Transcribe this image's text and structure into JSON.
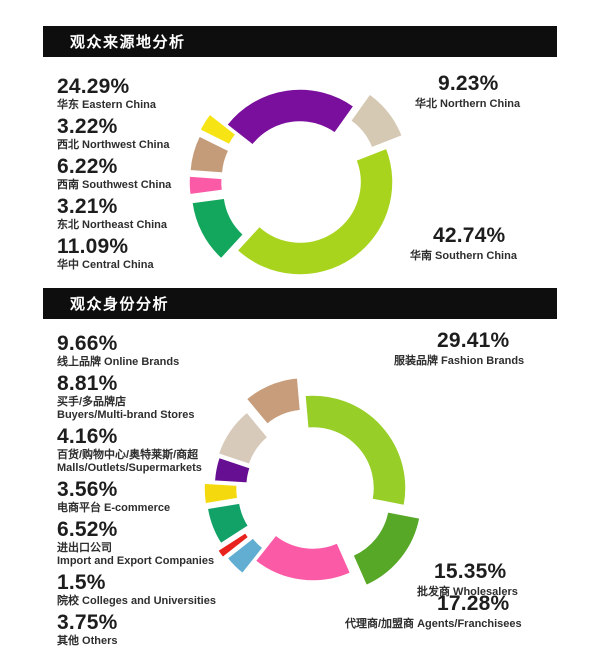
{
  "sections": [
    {
      "id": "origin",
      "title": "观众来源地分析"
    },
    {
      "id": "identity",
      "title": "观众身份分析"
    }
  ],
  "chart_data": [
    {
      "type": "pie",
      "subtype": "exploded-donut",
      "title": "观众来源地分析",
      "unit": "%",
      "start_angle_deg": -52,
      "legend_position": "none",
      "segments": [
        {
          "name_cn": "华东",
          "name_en": "Eastern China",
          "value": 24.29,
          "pct_label": "24.29%",
          "color": "#7a0f9d",
          "explode": 0,
          "label_lines": [
            "华东 Eastern China"
          ]
        },
        {
          "name_cn": "华北",
          "name_en": "Northern China",
          "value": 9.23,
          "pct_label": "9.23%",
          "color": "#d5c9b3",
          "explode": 20,
          "label_lines": [
            "华北 Northern China"
          ]
        },
        {
          "name_cn": "华南",
          "name_en": "Southern China",
          "value": 42.74,
          "pct_label": "42.74%",
          "color": "#a9d41d",
          "explode": 0,
          "label_lines": [
            "华南 Southern China"
          ]
        },
        {
          "name_cn": "华中",
          "name_en": "Central China",
          "value": 11.09,
          "pct_label": "11.09%",
          "color": "#13a65d",
          "explode": 18,
          "label_lines": [
            "华中 Central China"
          ]
        },
        {
          "name_cn": "东北",
          "name_en": "Northeast China",
          "value": 3.21,
          "pct_label": "3.21%",
          "color": "#fb5aa6",
          "explode": 18,
          "label_lines": [
            "东北 Northeast China"
          ]
        },
        {
          "name_cn": "西南",
          "name_en": "Southwest China",
          "value": 6.22,
          "pct_label": "6.22%",
          "color": "#c59c7a",
          "explode": 18,
          "label_lines": [
            "西南 Southwest China"
          ]
        },
        {
          "name_cn": "西北",
          "name_en": "Northwest China",
          "value": 3.22,
          "pct_label": "3.22%",
          "color": "#f6e414",
          "explode": 20,
          "label_lines": [
            "西北 Northwest China"
          ]
        }
      ]
    },
    {
      "type": "pie",
      "subtype": "exploded-donut",
      "title": "观众身份分析",
      "unit": "%",
      "start_angle_deg": -5,
      "legend_position": "none",
      "segments": [
        {
          "name_cn": "服装品牌",
          "name_en": "Fashion Brands",
          "value": 29.41,
          "pct_label": "29.41%",
          "color": "#97ce27",
          "explode": 0,
          "label_lines": [
            "服装品牌 Fashion Brands"
          ]
        },
        {
          "name_cn": "批发商",
          "name_en": "Wholesalers",
          "value": 15.35,
          "pct_label": "15.35%",
          "color": "#57a827",
          "explode": 20,
          "label_lines": [
            "批发商 Wholesalers"
          ]
        },
        {
          "name_cn": "代理商/加盟商",
          "name_en": "Agents/Franchisees",
          "value": 17.28,
          "pct_label": "17.28%",
          "color": "#fb5aa6",
          "explode": 0,
          "label_lines": [
            "代理商/加盟商 Agents/Franchisees"
          ]
        },
        {
          "name_cn": "其他",
          "name_en": "Others",
          "value": 3.75,
          "pct_label": "3.75%",
          "color": "#62aed2",
          "explode": 18,
          "label_lines": [
            "其他 Others"
          ]
        },
        {
          "name_cn": "院校",
          "name_en": "Colleges and Universities",
          "value": 1.5,
          "pct_label": "1.5%",
          "color": "#e8221c",
          "explode": 21,
          "label_lines": [
            "院校 Colleges and Universities"
          ]
        },
        {
          "name_cn": "进出口公司",
          "name_en": "Import and Export Companies",
          "value": 6.52,
          "pct_label": "6.52%",
          "color": "#12a268",
          "explode": 15,
          "label_lines": [
            "进出口公司",
            "Import and Export Companies"
          ]
        },
        {
          "name_cn": "电商平台",
          "name_en": "E-commerce",
          "value": 3.56,
          "pct_label": "3.56%",
          "color": "#f5d90f",
          "explode": 16,
          "label_lines": [
            "电商平台 E-commerce"
          ]
        },
        {
          "name_cn": "百货/购物中心/奥特莱斯/商超",
          "name_en": "Malls/Outlets/Supermarkets",
          "value": 4.16,
          "pct_label": "4.16%",
          "color": "#670f92",
          "explode": 6,
          "label_lines": [
            "百货/购物中心/奥特莱斯/商超",
            "Malls/Outlets/Supermarkets"
          ]
        },
        {
          "name_cn": "买手/多品牌店",
          "name_en": "Buyers/Multi-brand Stores",
          "value": 8.81,
          "pct_label": "8.81%",
          "color": "#d7cabb",
          "explode": 8,
          "label_lines": [
            "买手/多品牌店",
            "Buyers/Multi-brand Stores"
          ]
        },
        {
          "name_cn": "线上品牌",
          "name_en": "Online Brands",
          "value": 9.66,
          "pct_label": "9.66%",
          "color": "#c79d7b",
          "explode": 19,
          "label_lines": [
            "线上品牌 Online Brands"
          ]
        }
      ]
    }
  ]
}
